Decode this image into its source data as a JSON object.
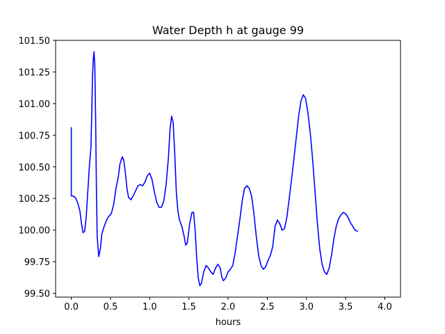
{
  "chart_data": {
    "type": "line",
    "title": "Water Depth h at gauge 99",
    "xlabel": "hours",
    "ylabel": "",
    "xlim": [
      -0.2,
      4.2
    ],
    "ylim": [
      99.47,
      101.5
    ],
    "x_ticks": [
      0.0,
      0.5,
      1.0,
      1.5,
      2.0,
      2.5,
      3.0,
      3.5,
      4.0
    ],
    "x_tick_labels": [
      "0.0",
      "0.5",
      "1.0",
      "1.5",
      "2.0",
      "2.5",
      "3.0",
      "3.5",
      "4.0"
    ],
    "y_ticks": [
      99.5,
      99.75,
      100.0,
      100.25,
      100.5,
      100.75,
      101.0,
      101.25,
      101.5
    ],
    "y_tick_labels": [
      "99.50",
      "99.75",
      "100.00",
      "100.25",
      "100.50",
      "100.75",
      "101.00",
      "101.25",
      "101.50"
    ],
    "grid": false,
    "legend": "none",
    "series": [
      {
        "color": "#0000ff",
        "points": [
          [
            0.0,
            100.81
          ],
          [
            0.0,
            100.27
          ],
          [
            0.02,
            100.27
          ],
          [
            0.05,
            100.26
          ],
          [
            0.08,
            100.22
          ],
          [
            0.11,
            100.15
          ],
          [
            0.13,
            100.05
          ],
          [
            0.15,
            99.98
          ],
          [
            0.17,
            99.99
          ],
          [
            0.19,
            100.1
          ],
          [
            0.21,
            100.3
          ],
          [
            0.23,
            100.5
          ],
          [
            0.25,
            100.65
          ],
          [
            0.26,
            100.9
          ],
          [
            0.27,
            101.2
          ],
          [
            0.28,
            101.35
          ],
          [
            0.29,
            101.41
          ],
          [
            0.3,
            101.3
          ],
          [
            0.31,
            100.9
          ],
          [
            0.32,
            100.35
          ],
          [
            0.33,
            99.95
          ],
          [
            0.35,
            99.79
          ],
          [
            0.37,
            99.85
          ],
          [
            0.39,
            99.97
          ],
          [
            0.42,
            100.03
          ],
          [
            0.45,
            100.08
          ],
          [
            0.48,
            100.11
          ],
          [
            0.51,
            100.13
          ],
          [
            0.54,
            100.2
          ],
          [
            0.57,
            100.33
          ],
          [
            0.6,
            100.42
          ],
          [
            0.62,
            100.52
          ],
          [
            0.65,
            100.58
          ],
          [
            0.67,
            100.55
          ],
          [
            0.69,
            100.45
          ],
          [
            0.71,
            100.33
          ],
          [
            0.73,
            100.26
          ],
          [
            0.76,
            100.24
          ],
          [
            0.79,
            100.27
          ],
          [
            0.82,
            100.31
          ],
          [
            0.85,
            100.35
          ],
          [
            0.88,
            100.36
          ],
          [
            0.91,
            100.35
          ],
          [
            0.94,
            100.38
          ],
          [
            0.97,
            100.43
          ],
          [
            1.0,
            100.45
          ],
          [
            1.03,
            100.4
          ],
          [
            1.06,
            100.3
          ],
          [
            1.09,
            100.22
          ],
          [
            1.12,
            100.18
          ],
          [
            1.15,
            100.18
          ],
          [
            1.18,
            100.23
          ],
          [
            1.21,
            100.36
          ],
          [
            1.24,
            100.58
          ],
          [
            1.26,
            100.8
          ],
          [
            1.28,
            100.9
          ],
          [
            1.3,
            100.85
          ],
          [
            1.32,
            100.6
          ],
          [
            1.34,
            100.3
          ],
          [
            1.36,
            100.15
          ],
          [
            1.38,
            100.08
          ],
          [
            1.41,
            100.03
          ],
          [
            1.44,
            99.95
          ],
          [
            1.46,
            99.88
          ],
          [
            1.48,
            99.9
          ],
          [
            1.51,
            100.05
          ],
          [
            1.54,
            100.14
          ],
          [
            1.56,
            100.14
          ],
          [
            1.58,
            100.0
          ],
          [
            1.6,
            99.78
          ],
          [
            1.62,
            99.62
          ],
          [
            1.64,
            99.56
          ],
          [
            1.66,
            99.58
          ],
          [
            1.69,
            99.67
          ],
          [
            1.72,
            99.72
          ],
          [
            1.75,
            99.7
          ],
          [
            1.78,
            99.67
          ],
          [
            1.81,
            99.65
          ],
          [
            1.84,
            99.7
          ],
          [
            1.87,
            99.73
          ],
          [
            1.9,
            99.7
          ],
          [
            1.92,
            99.63
          ],
          [
            1.94,
            99.6
          ],
          [
            1.97,
            99.62
          ],
          [
            2.0,
            99.67
          ],
          [
            2.03,
            99.69
          ],
          [
            2.06,
            99.72
          ],
          [
            2.09,
            99.82
          ],
          [
            2.12,
            99.95
          ],
          [
            2.15,
            100.08
          ],
          [
            2.18,
            100.23
          ],
          [
            2.21,
            100.33
          ],
          [
            2.24,
            100.35
          ],
          [
            2.27,
            100.33
          ],
          [
            2.3,
            100.27
          ],
          [
            2.33,
            100.13
          ],
          [
            2.36,
            99.95
          ],
          [
            2.39,
            99.8
          ],
          [
            2.42,
            99.72
          ],
          [
            2.45,
            99.69
          ],
          [
            2.48,
            99.71
          ],
          [
            2.51,
            99.76
          ],
          [
            2.54,
            99.8
          ],
          [
            2.57,
            99.87
          ],
          [
            2.6,
            100.03
          ],
          [
            2.63,
            100.08
          ],
          [
            2.66,
            100.05
          ],
          [
            2.69,
            100.0
          ],
          [
            2.72,
            100.01
          ],
          [
            2.75,
            100.1
          ],
          [
            2.78,
            100.25
          ],
          [
            2.81,
            100.4
          ],
          [
            2.84,
            100.56
          ],
          [
            2.87,
            100.73
          ],
          [
            2.9,
            100.9
          ],
          [
            2.93,
            101.02
          ],
          [
            2.96,
            101.07
          ],
          [
            2.99,
            101.04
          ],
          [
            3.02,
            100.92
          ],
          [
            3.05,
            100.76
          ],
          [
            3.08,
            100.55
          ],
          [
            3.11,
            100.3
          ],
          [
            3.14,
            100.05
          ],
          [
            3.17,
            99.85
          ],
          [
            3.2,
            99.73
          ],
          [
            3.23,
            99.67
          ],
          [
            3.26,
            99.65
          ],
          [
            3.29,
            99.7
          ],
          [
            3.32,
            99.8
          ],
          [
            3.35,
            99.93
          ],
          [
            3.38,
            100.03
          ],
          [
            3.41,
            100.09
          ],
          [
            3.44,
            100.12
          ],
          [
            3.47,
            100.14
          ],
          [
            3.5,
            100.13
          ],
          [
            3.53,
            100.1
          ],
          [
            3.56,
            100.06
          ],
          [
            3.59,
            100.03
          ],
          [
            3.62,
            100.0
          ],
          [
            3.65,
            99.99
          ]
        ]
      }
    ]
  }
}
